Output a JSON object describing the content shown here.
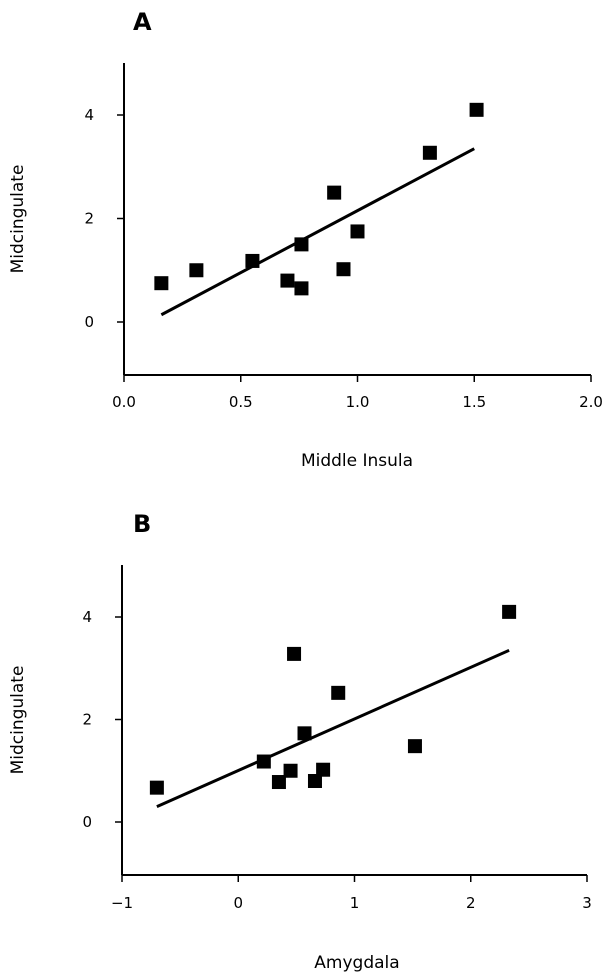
{
  "chart_data": [
    {
      "type": "scatter",
      "panel": "A",
      "xlabel": "Middle Insula",
      "ylabel": "Midcingulate",
      "xlim": [
        0.0,
        2.0
      ],
      "ylim": [
        -1,
        5
      ],
      "xticks": [
        "0.0",
        "0.5",
        "1.0",
        "1.5",
        "2.0"
      ],
      "yticks": [
        "0",
        "2",
        "4"
      ],
      "points": [
        {
          "x": 0.16,
          "y": 0.75
        },
        {
          "x": 0.31,
          "y": 1.0
        },
        {
          "x": 0.55,
          "y": 1.18
        },
        {
          "x": 0.7,
          "y": 0.8
        },
        {
          "x": 0.76,
          "y": 0.65
        },
        {
          "x": 0.76,
          "y": 1.5
        },
        {
          "x": 0.9,
          "y": 2.5
        },
        {
          "x": 0.94,
          "y": 1.02
        },
        {
          "x": 1.0,
          "y": 1.75
        },
        {
          "x": 1.31,
          "y": 3.27
        },
        {
          "x": 1.51,
          "y": 4.1
        }
      ],
      "fit_line": {
        "x": [
          0.16,
          1.5
        ],
        "y": [
          0.14,
          3.35
        ]
      },
      "grid": false
    },
    {
      "type": "scatter",
      "panel": "B",
      "xlabel": "Amygdala",
      "ylabel": "Midcingulate",
      "xlim": [
        -1,
        3
      ],
      "ylim": [
        -1,
        5
      ],
      "xticks": [
        "−1",
        "0",
        "1",
        "2",
        "3"
      ],
      "yticks": [
        "0",
        "2",
        "4"
      ],
      "points": [
        {
          "x": -0.7,
          "y": 0.67
        },
        {
          "x": 0.22,
          "y": 1.18
        },
        {
          "x": 0.35,
          "y": 0.78
        },
        {
          "x": 0.45,
          "y": 1.0
        },
        {
          "x": 0.48,
          "y": 3.28
        },
        {
          "x": 0.57,
          "y": 1.73
        },
        {
          "x": 0.66,
          "y": 0.8
        },
        {
          "x": 0.73,
          "y": 1.02
        },
        {
          "x": 0.86,
          "y": 2.52
        },
        {
          "x": 1.52,
          "y": 1.48
        },
        {
          "x": 2.33,
          "y": 4.1
        }
      ],
      "fit_line": {
        "x": [
          -0.7,
          2.33
        ],
        "y": [
          0.3,
          3.35
        ]
      },
      "grid": false
    }
  ]
}
